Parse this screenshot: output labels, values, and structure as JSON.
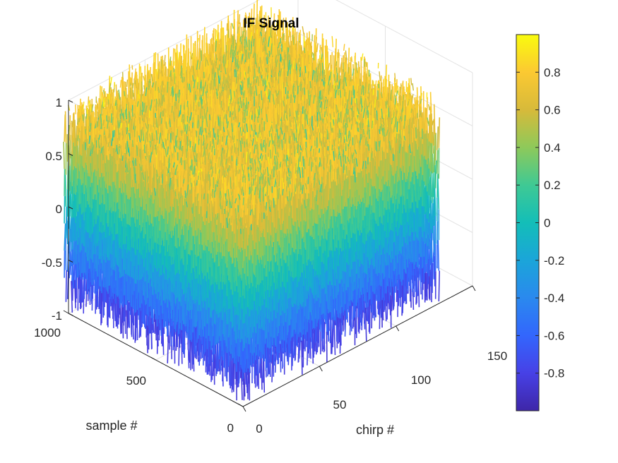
{
  "chart_data": {
    "type": "surface",
    "title": "IF Signal",
    "xlabel": "chirp #",
    "ylabel": "sample #",
    "zlabel": "",
    "x_ticks": [
      "0",
      "50",
      "100",
      "150"
    ],
    "y_ticks": [
      "0",
      "500",
      "1000"
    ],
    "z_ticks": [
      "-1",
      "-0.5",
      "0",
      "0.5",
      "1"
    ],
    "xlim": [
      0,
      150
    ],
    "ylim": [
      0,
      1000
    ],
    "zlim": [
      -1,
      1
    ],
    "colorbar": {
      "colormap": "parula",
      "ticks": [
        "-0.8",
        "-0.6",
        "-0.4",
        "-0.2",
        "0",
        "0.2",
        "0.4",
        "0.6",
        "0.8"
      ],
      "range": [
        -1,
        1
      ]
    },
    "data_extent": {
      "chirps": 128,
      "samples": 1024,
      "value_range": [
        -1,
        1
      ]
    },
    "grid": true,
    "colors": {
      "low": "#3e26a8",
      "mid": "#13beb8",
      "high": "#f9fb0e"
    }
  }
}
